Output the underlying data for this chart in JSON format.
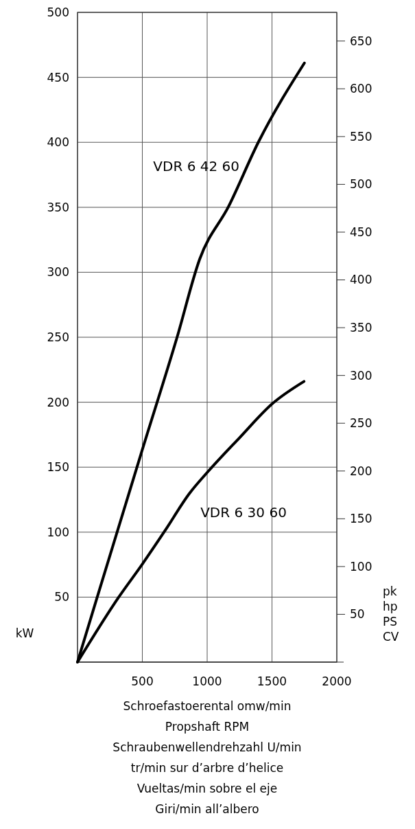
{
  "chart_data": {
    "type": "line",
    "ylabel": "kW",
    "y2label": "pk\nhp\nPS\nCV",
    "xlabel": "Schroefastoerental  omw/min\nPropshaft RPM\nSchraubenwellendrehzahl  U/min\ntr/min sur d’arbre d’helice\nVueltas/min sobre el eje\nGiri/min all’albero",
    "xlim": [
      0,
      2000
    ],
    "xticks": [
      {
        "value": 0,
        "label": null
      },
      500,
      1000,
      1500,
      2000
    ],
    "ylim": [
      0,
      500
    ],
    "yticks": [
      {
        "value": 0,
        "label": null
      },
      50,
      100,
      150,
      200,
      250,
      300,
      350,
      400,
      450,
      500
    ],
    "y2lim": [
      0,
      680
    ],
    "y2ticks": [
      50,
      100,
      150,
      200,
      250,
      300,
      350,
      400,
      450,
      500,
      550,
      600,
      650
    ],
    "grid": true,
    "line_style": "solid",
    "marker": "none",
    "series": [
      {
        "name": "VDR 6 42 60",
        "color": "#000000",
        "x": [
          0,
          152,
          500,
          768,
          942,
          1167,
          1397,
          1750
        ],
        "values": [
          0,
          50,
          163.5,
          250,
          310,
          351,
          400.5,
          461
        ]
      },
      {
        "name": "VDR 6 30 60",
        "color": "#000000",
        "x": [
          0,
          318,
          500,
          672,
          865,
          1001,
          1250,
          1504,
          1747
        ],
        "values": [
          0,
          50,
          75.4,
          100.7,
          130,
          146,
          172.7,
          199,
          216
        ]
      }
    ]
  }
}
